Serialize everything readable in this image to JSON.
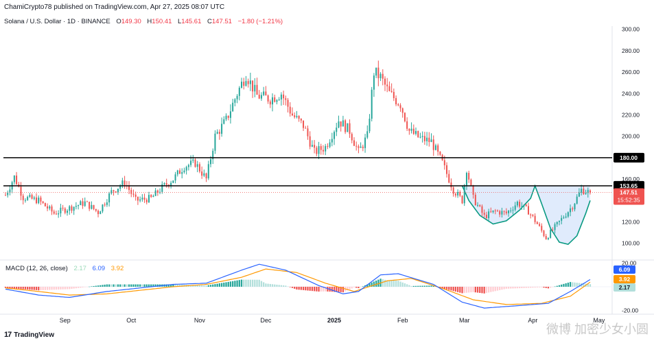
{
  "header": {
    "published": "ChamiCrypto78 published on TradingView.com, Apr 27, 2025 08:07 UTC"
  },
  "symbol": {
    "name": "Solana / U.S. Dollar · 1D · BINANCE",
    "o_label": "O",
    "o": "149.30",
    "h_label": "H",
    "h": "150.41",
    "l_label": "L",
    "l": "145.61",
    "c_label": "C",
    "c": "147.51",
    "change": "−1.80 (−1.21%)"
  },
  "macd_legend": {
    "title": "MACD (12, 26, close)",
    "hist": "2.17",
    "macd": "6.09",
    "signal": "3.92"
  },
  "footer": {
    "brand": "TradingView",
    "logo": "17"
  },
  "watermark": "微博 加密少女小圆",
  "colors": {
    "up": "#26a69a",
    "down": "#ef5350",
    "macd": "#2962ff",
    "signal": "#ff9800",
    "hist_up": "#26a69a",
    "hist_down": "#ef5350",
    "pattern_fill": "#d6e4fb",
    "pattern_line": "#089981"
  },
  "chart_data": [
    {
      "type": "candlestick",
      "title": "",
      "x_labels": [
        "Sep",
        "Oct",
        "Nov",
        "Dec",
        "2025",
        "Feb",
        "Mar",
        "Apr",
        "May"
      ],
      "y_ticks": [
        100,
        120,
        140,
        160,
        180,
        200,
        220,
        240,
        260,
        280,
        300
      ],
      "y_tick_labels": [
        "100.00",
        "120.00",
        "140.00",
        "160.00",
        "180.00",
        "200.00",
        "220.00",
        "240.00",
        "260.00",
        "280.00",
        "300.00"
      ],
      "ylim": [
        85,
        303
      ],
      "horizontal_lines": [
        {
          "value": 180.0,
          "label": "180.00"
        },
        {
          "value": 153.65,
          "label": "153.65"
        }
      ],
      "last_price": {
        "value": 147.51,
        "label": "147.51",
        "countdown": "15:52:35"
      },
      "pattern": "cup and handle",
      "close_path": [
        {
          "date": "Aug 5",
          "close": 145
        },
        {
          "date": "Aug 9",
          "close": 162
        },
        {
          "date": "Aug 13",
          "close": 143
        },
        {
          "date": "Aug 20",
          "close": 140
        },
        {
          "date": "Aug 27",
          "close": 128
        },
        {
          "date": "Sep 3",
          "close": 133
        },
        {
          "date": "Sep 10",
          "close": 138
        },
        {
          "date": "Sep 16",
          "close": 129
        },
        {
          "date": "Sep 22",
          "close": 148
        },
        {
          "date": "Sep 28",
          "close": 157
        },
        {
          "date": "Oct 3",
          "close": 140
        },
        {
          "date": "Oct 10",
          "close": 142
        },
        {
          "date": "Oct 15",
          "close": 152
        },
        {
          "date": "Oct 20",
          "close": 160
        },
        {
          "date": "Oct 25",
          "close": 172
        },
        {
          "date": "Oct 30",
          "close": 175
        },
        {
          "date": "Nov 4",
          "close": 160
        },
        {
          "date": "Nov 8",
          "close": 200
        },
        {
          "date": "Nov 13",
          "close": 215
        },
        {
          "date": "Nov 18",
          "close": 240
        },
        {
          "date": "Nov 22",
          "close": 258
        },
        {
          "date": "Nov 27",
          "close": 238
        },
        {
          "date": "Dec 3",
          "close": 235
        },
        {
          "date": "Dec 8",
          "close": 240
        },
        {
          "date": "Dec 13",
          "close": 220
        },
        {
          "date": "Dec 18",
          "close": 210
        },
        {
          "date": "Dec 23",
          "close": 185
        },
        {
          "date": "Dec 28",
          "close": 190
        },
        {
          "date": "Jan 3",
          "close": 215
        },
        {
          "date": "Jan 8",
          "close": 205
        },
        {
          "date": "Jan 12",
          "close": 185
        },
        {
          "date": "Jan 16",
          "close": 200
        },
        {
          "date": "Jan 19",
          "close": 260
        },
        {
          "date": "Jan 22",
          "close": 255
        },
        {
          "date": "Jan 26",
          "close": 240
        },
        {
          "date": "Jan 31",
          "close": 230
        },
        {
          "date": "Feb 4",
          "close": 205
        },
        {
          "date": "Feb 9",
          "close": 198
        },
        {
          "date": "Feb 14",
          "close": 195
        },
        {
          "date": "Feb 19",
          "close": 175
        },
        {
          "date": "Feb 24",
          "close": 150
        },
        {
          "date": "Feb 28",
          "close": 140
        },
        {
          "date": "Mar 2",
          "close": 170
        },
        {
          "date": "Mar 5",
          "close": 142
        },
        {
          "date": "Mar 10",
          "close": 125
        },
        {
          "date": "Mar 15",
          "close": 130
        },
        {
          "date": "Mar 20",
          "close": 128
        },
        {
          "date": "Mar 25",
          "close": 138
        },
        {
          "date": "Mar 30",
          "close": 130
        },
        {
          "date": "Apr 3",
          "close": 118
        },
        {
          "date": "Apr 7",
          "close": 105
        },
        {
          "date": "Apr 11",
          "close": 115
        },
        {
          "date": "Apr 15",
          "close": 125
        },
        {
          "date": "Apr 19",
          "close": 135
        },
        {
          "date": "Apr 23",
          "close": 150
        },
        {
          "date": "Apr 27",
          "close": 147.51
        }
      ]
    },
    {
      "type": "macd",
      "title": "",
      "y_ticks": [
        20,
        -20
      ],
      "y_tick_labels": [
        "20.00",
        "-20.00"
      ],
      "ylim": [
        -22,
        22
      ],
      "value_labels": [
        {
          "value": 6.09,
          "label": "6.09"
        },
        {
          "value": 3.92,
          "label": "3.92"
        },
        {
          "value": 2.17,
          "label": "2.17"
        }
      ],
      "macd_path": [
        {
          "date": "Aug 5",
          "value": -2
        },
        {
          "date": "Aug 20",
          "value": -7
        },
        {
          "date": "Sep 3",
          "value": -9
        },
        {
          "date": "Sep 20",
          "value": -4
        },
        {
          "date": "Oct 5",
          "value": -1
        },
        {
          "date": "Oct 20",
          "value": 2
        },
        {
          "date": "Nov 4",
          "value": 3
        },
        {
          "date": "Nov 20",
          "value": 14
        },
        {
          "date": "Nov 28",
          "value": 19
        },
        {
          "date": "Dec 10",
          "value": 14
        },
        {
          "date": "Dec 25",
          "value": 1
        },
        {
          "date": "Jan 5",
          "value": -6
        },
        {
          "date": "Jan 12",
          "value": -4
        },
        {
          "date": "Jan 22",
          "value": 10
        },
        {
          "date": "Jan 30",
          "value": 11
        },
        {
          "date": "Feb 15",
          "value": 2
        },
        {
          "date": "Feb 28",
          "value": -13
        },
        {
          "date": "Mar 10",
          "value": -18
        },
        {
          "date": "Mar 25",
          "value": -16
        },
        {
          "date": "Apr 8",
          "value": -14
        },
        {
          "date": "Apr 18",
          "value": -4
        },
        {
          "date": "Apr 27",
          "value": 6.09
        }
      ],
      "signal_path": [
        {
          "date": "Aug 5",
          "value": -1
        },
        {
          "date": "Aug 20",
          "value": -4
        },
        {
          "date": "Sep 3",
          "value": -7
        },
        {
          "date": "Sep 20",
          "value": -6
        },
        {
          "date": "Oct 5",
          "value": -3
        },
        {
          "date": "Oct 20",
          "value": 0
        },
        {
          "date": "Nov 4",
          "value": 2
        },
        {
          "date": "Nov 20",
          "value": 8
        },
        {
          "date": "Dec 1",
          "value": 15
        },
        {
          "date": "Dec 15",
          "value": 12
        },
        {
          "date": "Dec 28",
          "value": 3
        },
        {
          "date": "Jan 10",
          "value": -4
        },
        {
          "date": "Jan 25",
          "value": 5
        },
        {
          "date": "Feb 5",
          "value": 7
        },
        {
          "date": "Feb 20",
          "value": -2
        },
        {
          "date": "Mar 5",
          "value": -11
        },
        {
          "date": "Mar 20",
          "value": -15
        },
        {
          "date": "Apr 5",
          "value": -14
        },
        {
          "date": "Apr 18",
          "value": -8
        },
        {
          "date": "Apr 27",
          "value": 3.92
        }
      ]
    }
  ]
}
